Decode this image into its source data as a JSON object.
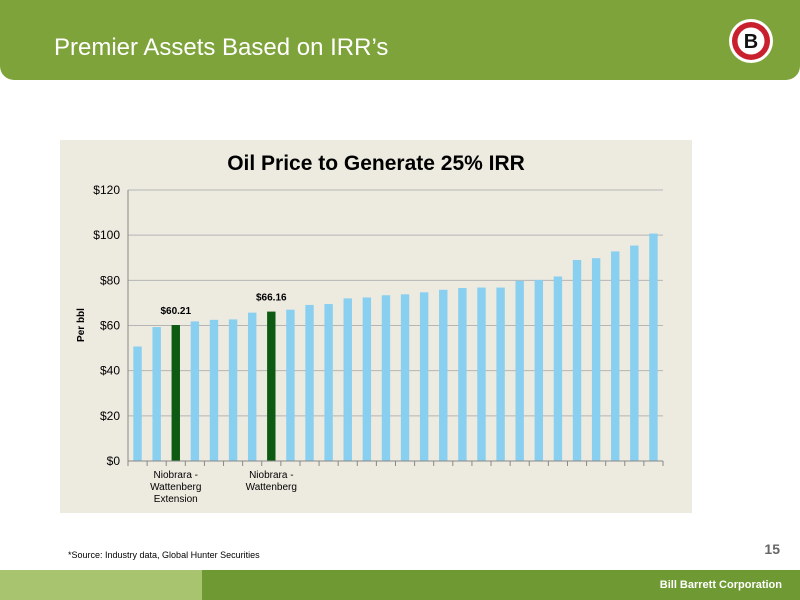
{
  "header": {
    "title": "Premier Assets Based on IRR’s",
    "color": "#7ea33b"
  },
  "logo": {
    "letter": "B",
    "ring_color": "#c8202c"
  },
  "chart_data": {
    "type": "bar",
    "title": "Oil Price to Generate 25% IRR",
    "xlabel": "",
    "ylabel": "Per bbl",
    "ylim": [
      0,
      120
    ],
    "yticks": [
      "$0",
      "$20",
      "$40",
      "$60",
      "$80",
      "$100",
      "$120"
    ],
    "grid": true,
    "values": [
      50.7,
      59.3,
      60.21,
      61.8,
      62.5,
      62.7,
      65.7,
      66.16,
      67.0,
      69.1,
      69.5,
      72.0,
      72.4,
      73.4,
      73.8,
      74.7,
      75.8,
      76.6,
      76.8,
      76.8,
      79.8,
      80.2,
      81.7,
      89.0,
      89.8,
      92.8,
      95.4,
      100.7
    ],
    "highlighted_indices": [
      2,
      7
    ],
    "data_labels": [
      {
        "index": 2,
        "text": "$60.21"
      },
      {
        "index": 7,
        "text": "$66.16"
      }
    ],
    "category_labels": [
      {
        "index": 2,
        "lines": [
          "Niobrara -",
          "Wattenberg",
          "Extension"
        ]
      },
      {
        "index": 7,
        "lines": [
          "Niobrara -",
          "Wattenberg"
        ]
      }
    ],
    "colors": {
      "bar": "#89cff0",
      "highlight": "#0d5b12",
      "background": "#edeae0",
      "grid": "#b5b5b5"
    }
  },
  "footnote": "*Source: Industry data, Global Hunter Securities",
  "page_number": "15",
  "footer": {
    "company": "Bill Barrett Corporation"
  }
}
